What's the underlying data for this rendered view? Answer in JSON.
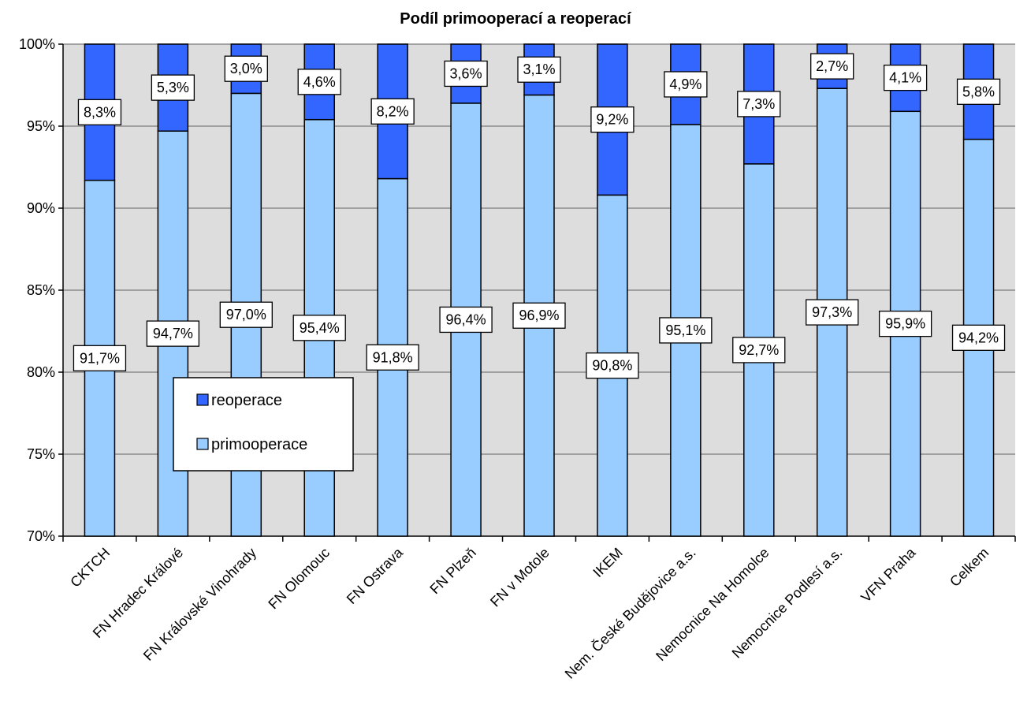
{
  "chart_data": {
    "type": "bar",
    "stacked": true,
    "normalized": true,
    "title": "Podíl primooperací a reoperací",
    "xlabel": "",
    "ylabel": "",
    "ylim": [
      0.7,
      1.0
    ],
    "y_ticks": [
      "70%",
      "75%",
      "80%",
      "85%",
      "90%",
      "95%",
      "100%"
    ],
    "grid": true,
    "legend_position": "inside-left",
    "categories": [
      "CKTCH",
      "FN Hradec Králové",
      "FN Královské Vinohrady",
      "FN Olomouc",
      "FN Ostrava",
      "FN Plzeň",
      "FN v Motole",
      "IKEM",
      "Nem. České Budějovice a.s.",
      "Nemocnice Na Homolce",
      "Nemocnice Podlesí a.s.",
      "VFN Praha",
      "Celkem"
    ],
    "series": [
      {
        "name": "primooperace",
        "color": "#99CCFF",
        "values": [
          0.917,
          0.947,
          0.97,
          0.954,
          0.918,
          0.964,
          0.969,
          0.908,
          0.951,
          0.927,
          0.973,
          0.959,
          0.942
        ],
        "labels": [
          "91,7%",
          "94,7%",
          "97,0%",
          "95,4%",
          "91,8%",
          "96,4%",
          "96,9%",
          "90,8%",
          "95,1%",
          "92,7%",
          "97,3%",
          "95,9%",
          "94,2%"
        ]
      },
      {
        "name": "reoperace",
        "color": "#3366FF",
        "values": [
          0.083,
          0.053,
          0.03,
          0.046,
          0.082,
          0.036,
          0.031,
          0.092,
          0.049,
          0.073,
          0.027,
          0.041,
          0.058
        ],
        "labels": [
          "8,3%",
          "5,3%",
          "3,0%",
          "4,6%",
          "8,2%",
          "3,6%",
          "3,1%",
          "9,2%",
          "4,9%",
          "7,3%",
          "2,7%",
          "4,1%",
          "5,8%"
        ]
      }
    ],
    "legend": {
      "items": [
        {
          "name": "reoperace",
          "color": "#3366FF"
        },
        {
          "name": "primooperace",
          "color": "#99CCFF"
        }
      ]
    },
    "plot_background": "#DDDDDD"
  }
}
